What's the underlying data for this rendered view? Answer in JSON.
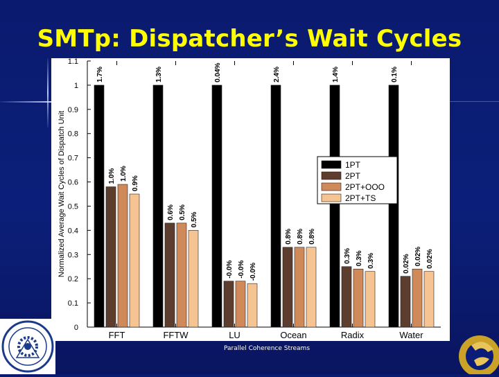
{
  "slide": {
    "title": "SMTp: Dispatcher’s Wait Cycles",
    "footer": "Parallel Coherence Streams"
  },
  "colors": {
    "background": "#0b1d78",
    "title": "#ffff00",
    "series": [
      "#000000",
      "#5c3d2e",
      "#d08a5a",
      "#f6c392"
    ]
  },
  "chart_data": {
    "type": "bar",
    "title": "",
    "xlabel": "",
    "ylabel": "Normalized Average Wait Cycles of Dispatch Unit",
    "ylim": [
      0,
      1.1
    ],
    "yticks": [
      "0",
      "0.1",
      "0.2",
      "0.3",
      "0.4",
      "0.5",
      "0.6",
      "0.7",
      "0.8",
      "0.9",
      "1",
      "1.1"
    ],
    "categories": [
      "FFT",
      "FFTW",
      "LU",
      "Ocean",
      "Radix",
      "Water"
    ],
    "legend_position": "right",
    "series": [
      {
        "name": "1PT",
        "values": [
          1.0,
          1.0,
          1.0,
          1.0,
          1.0,
          1.0
        ],
        "labels": [
          "1.7%",
          "1.3%",
          "0.04%",
          "2.4%",
          "1.4%",
          "0.1%"
        ]
      },
      {
        "name": "2PT",
        "values": [
          0.58,
          0.43,
          0.19,
          0.33,
          0.25,
          0.21
        ],
        "labels": [
          "1.0%",
          "0.6%",
          "-0.0%",
          "0.8%",
          "0.3%",
          "0.02%"
        ]
      },
      {
        "name": "2PT+OOO",
        "values": [
          0.59,
          0.43,
          0.19,
          0.33,
          0.24,
          0.24
        ],
        "labels": [
          "1.0%",
          "0.5%",
          "-0.0%",
          "0.8%",
          "0.3%",
          "0.02%"
        ]
      },
      {
        "name": "2PT+TS",
        "values": [
          0.55,
          0.4,
          0.18,
          0.33,
          0.23,
          0.23
        ],
        "labels": [
          "0.9%",
          "0.5%",
          "-0.0%",
          "0.8%",
          "0.3%",
          "0.02%"
        ]
      }
    ]
  }
}
